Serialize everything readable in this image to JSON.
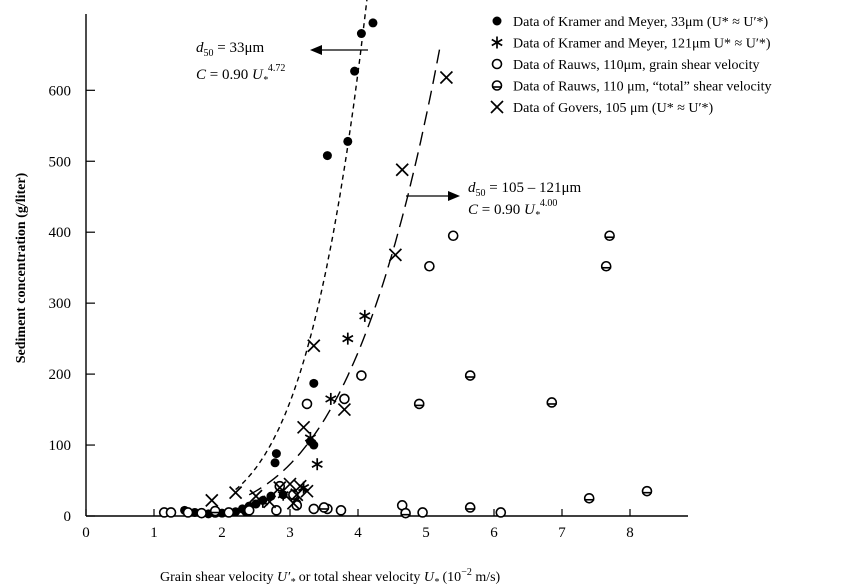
{
  "chart_data": {
    "type": "scatter",
    "xlabel": "Grain shear velocity U′* or total shear velocity U* (10⁻² m/s)",
    "ylabel": "Sediment concentration (g/liter)",
    "xlim": [
      0,
      8.75
    ],
    "ylim": [
      0,
      700
    ],
    "x_ticks": [
      "0",
      "1",
      "2",
      "3",
      "4",
      "5",
      "6",
      "7",
      "8"
    ],
    "y_ticks": [
      "0",
      "100",
      "200",
      "300",
      "400",
      "500",
      "600"
    ],
    "legend_position": "top-right",
    "series": [
      {
        "name": "Data of Kramer and Meyer, 33μm (U* ≈ U′*)",
        "marker": "filled-circle",
        "points": [
          [
            1.45,
            8
          ],
          [
            1.6,
            5
          ],
          [
            1.8,
            3
          ],
          [
            2.0,
            4
          ],
          [
            2.2,
            6
          ],
          [
            2.3,
            10
          ],
          [
            2.35,
            6
          ],
          [
            2.4,
            14
          ],
          [
            2.5,
            17
          ],
          [
            2.6,
            22
          ],
          [
            2.72,
            28
          ],
          [
            2.78,
            75
          ],
          [
            2.8,
            88
          ],
          [
            2.9,
            30
          ],
          [
            3.1,
            18
          ],
          [
            3.3,
            105
          ],
          [
            3.35,
            100
          ],
          [
            3.35,
            187
          ],
          [
            3.55,
            508
          ],
          [
            3.85,
            528
          ],
          [
            3.95,
            627
          ],
          [
            4.05,
            680
          ],
          [
            4.22,
            695
          ]
        ]
      },
      {
        "name": "Data of Kramer and Meyer, 121μm U* ≈ U′*)",
        "marker": "asterisk",
        "points": [
          [
            2.6,
            20
          ],
          [
            2.9,
            30
          ],
          [
            3.2,
            40
          ],
          [
            3.3,
            110
          ],
          [
            3.4,
            73
          ],
          [
            3.6,
            165
          ],
          [
            3.85,
            250
          ],
          [
            4.1,
            282
          ]
        ]
      },
      {
        "name": "Data of Rauws, 110μm, grain shear velocity",
        "marker": "open-circle",
        "points": [
          [
            1.15,
            5
          ],
          [
            1.25,
            5
          ],
          [
            1.5,
            5
          ],
          [
            1.7,
            4
          ],
          [
            1.9,
            5
          ],
          [
            2.1,
            5
          ],
          [
            2.4,
            8
          ],
          [
            2.8,
            8
          ],
          [
            2.85,
            42
          ],
          [
            3.05,
            30
          ],
          [
            3.1,
            15
          ],
          [
            3.25,
            158
          ],
          [
            3.35,
            10
          ],
          [
            3.55,
            10
          ],
          [
            3.75,
            8
          ],
          [
            3.8,
            165
          ],
          [
            4.05,
            198
          ],
          [
            4.65,
            15
          ],
          [
            4.95,
            5
          ],
          [
            5.05,
            352
          ],
          [
            5.4,
            395
          ],
          [
            6.1,
            5
          ]
        ]
      },
      {
        "name": "Data of Rauws, 110 μm, “total” shear velocity",
        "marker": "open-circle-bar",
        "points": [
          [
            1.9,
            7
          ],
          [
            3.5,
            12
          ],
          [
            4.7,
            4
          ],
          [
            4.9,
            158
          ],
          [
            5.65,
            12
          ],
          [
            5.65,
            198
          ],
          [
            6.85,
            160
          ],
          [
            7.4,
            25
          ],
          [
            7.65,
            352
          ],
          [
            7.7,
            395
          ],
          [
            8.25,
            35
          ]
        ]
      },
      {
        "name": "Data of Govers, 105 μm (U* ≈ U′*)",
        "marker": "x",
        "points": [
          [
            1.85,
            22
          ],
          [
            2.2,
            33
          ],
          [
            2.5,
            28
          ],
          [
            2.7,
            20
          ],
          [
            2.85,
            40
          ],
          [
            3.0,
            45
          ],
          [
            3.05,
            18
          ],
          [
            3.1,
            30
          ],
          [
            3.15,
            42
          ],
          [
            3.25,
            35
          ],
          [
            3.35,
            240
          ],
          [
            3.2,
            125
          ],
          [
            3.8,
            150
          ],
          [
            4.55,
            368
          ],
          [
            4.65,
            488
          ],
          [
            5.3,
            618
          ]
        ]
      }
    ],
    "curves": [
      {
        "label_d50": "33μm",
        "formula_coef": "0.90",
        "formula_exp": "4.72",
        "exponent": 4.72,
        "coef": 0.9,
        "x_range": [
          2.2,
          4.2
        ],
        "dash": "5,4"
      },
      {
        "label_d50": "105 – 121μm",
        "formula_coef": "0.90",
        "formula_exp": "4.00",
        "exponent": 4.0,
        "coef": 0.9,
        "x_range": [
          2.4,
          5.2
        ],
        "dash": "14,7"
      }
    ]
  },
  "annotations": {
    "a1_d50": "33μm",
    "a1_formula": "C = 0.90 U*",
    "a1_exp": "4.72",
    "a2_d50": "105 – 121μm",
    "a2_formula": "C = 0.90 U*",
    "a2_exp": "4.00"
  }
}
